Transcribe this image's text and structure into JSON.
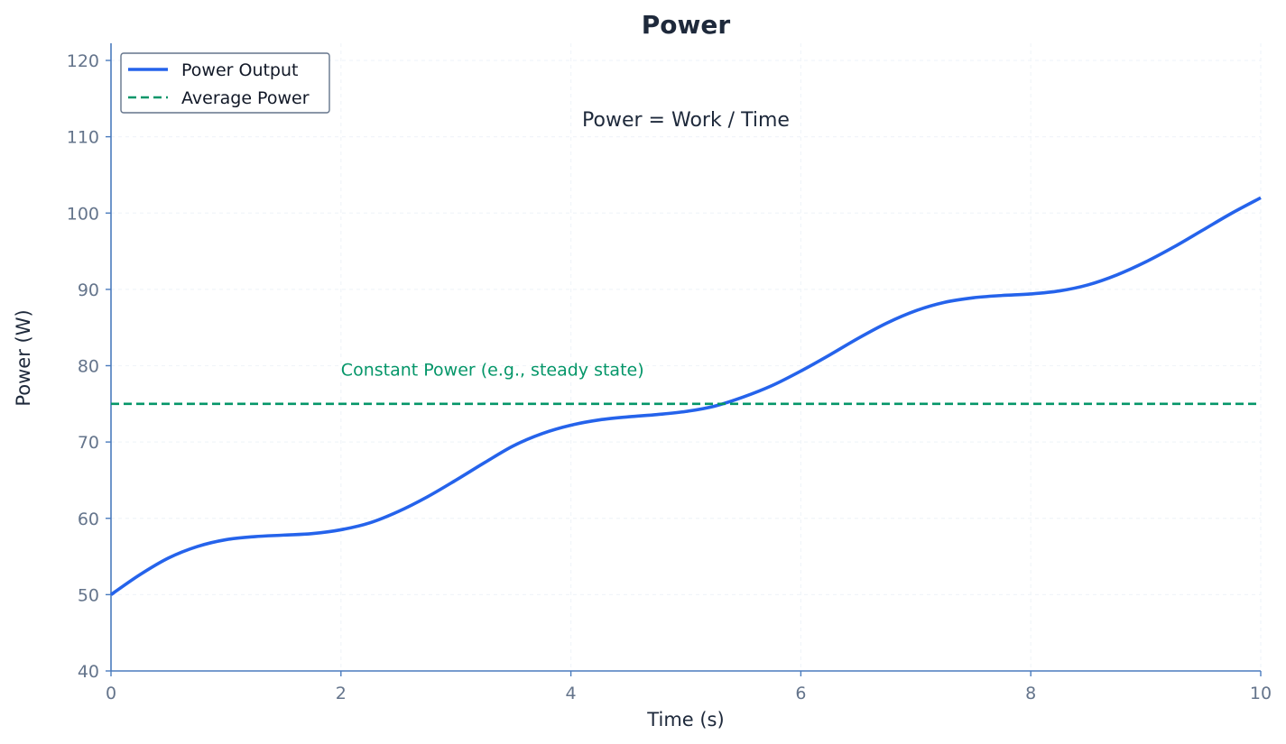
{
  "chart_data": {
    "type": "line",
    "title": "Power",
    "xlabel": "Time (s)",
    "ylabel": "Power (W)",
    "xlim": [
      0,
      10
    ],
    "ylim": [
      40,
      122
    ],
    "xticks": [
      "0",
      "2",
      "4",
      "6",
      "8",
      "10"
    ],
    "yticks": [
      "40",
      "50",
      "60",
      "70",
      "80",
      "90",
      "100",
      "110",
      "120"
    ],
    "grid": true,
    "legend_position": "top-left",
    "series": [
      {
        "name": "Power Output",
        "style": "solid",
        "color": "#2563eb",
        "x": [
          0,
          0.25,
          0.5,
          0.75,
          1.0,
          1.25,
          1.5,
          1.75,
          2.0,
          2.25,
          2.5,
          2.75,
          3.0,
          3.25,
          3.5,
          3.75,
          4.0,
          4.25,
          4.5,
          4.75,
          5.0,
          5.25,
          5.5,
          5.75,
          6.0,
          6.25,
          6.5,
          6.75,
          7.0,
          7.25,
          7.5,
          7.75,
          8.0,
          8.25,
          8.5,
          8.75,
          9.0,
          9.25,
          9.5,
          9.75,
          10.0
        ],
        "y": [
          50.0,
          52.6,
          54.8,
          56.3,
          57.2,
          57.6,
          57.8,
          58.0,
          58.5,
          59.4,
          60.9,
          62.8,
          65.0,
          67.3,
          69.5,
          71.1,
          72.2,
          72.9,
          73.3,
          73.6,
          74.0,
          74.7,
          75.9,
          77.4,
          79.3,
          81.4,
          83.6,
          85.6,
          87.2,
          88.3,
          88.9,
          89.2,
          89.4,
          89.8,
          90.6,
          91.9,
          93.6,
          95.6,
          97.8,
          100.0,
          102.0
        ]
      },
      {
        "name": "Average Power",
        "style": "dashed",
        "color": "#059669",
        "x": [
          0,
          10
        ],
        "y": [
          75,
          75
        ]
      }
    ],
    "annotations": [
      {
        "text": "Power = Work / Time",
        "x": 5.0,
        "y": 112.3
      },
      {
        "text": "Constant Power (e.g., steady state)",
        "x": 2.0,
        "y": 79.5
      }
    ]
  },
  "colors": {
    "text": "#1e293b",
    "tick_text": "#64748b",
    "axis": "#4a7bbd",
    "grid": "#f1f5f9",
    "legend_border": "#64748b"
  }
}
